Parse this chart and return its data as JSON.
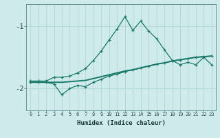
{
  "xlabel": "Humidex (Indice chaleur)",
  "bg_color": "#ceeaea",
  "line_color": "#1a7a6a",
  "grid_color": "#b0d8d0",
  "x": [
    0,
    1,
    2,
    3,
    4,
    5,
    6,
    7,
    8,
    9,
    10,
    11,
    12,
    13,
    14,
    15,
    16,
    17,
    18,
    19,
    20,
    21,
    22,
    23
  ],
  "y_upper": [
    -1.88,
    -1.88,
    -1.88,
    -1.82,
    -1.82,
    -1.8,
    -1.75,
    -1.68,
    -1.55,
    -1.4,
    -1.22,
    -1.05,
    -0.85,
    -1.07,
    -0.92,
    -1.08,
    -1.2,
    -1.38,
    -1.55,
    -1.62,
    -1.58,
    -1.62,
    -1.5,
    -1.62
  ],
  "y_mean": [
    -1.9,
    -1.9,
    -1.9,
    -1.9,
    -1.9,
    -1.89,
    -1.88,
    -1.87,
    -1.84,
    -1.81,
    -1.78,
    -1.75,
    -1.72,
    -1.7,
    -1.67,
    -1.64,
    -1.61,
    -1.59,
    -1.56,
    -1.54,
    -1.52,
    -1.5,
    -1.49,
    -1.48
  ],
  "y_lower": [
    -1.9,
    -1.9,
    -1.9,
    -1.93,
    -2.1,
    -2.0,
    -1.95,
    -1.97,
    -1.9,
    -1.85,
    -1.8,
    -1.77,
    -1.73,
    -1.7,
    -1.67,
    -1.64,
    -1.61,
    -1.59,
    -1.56,
    -1.54,
    -1.52,
    -1.5,
    -1.49,
    -1.48
  ],
  "yticks": [
    -2,
    -1
  ],
  "ylim": [
    -2.35,
    -0.65
  ],
  "xlim": [
    -0.5,
    23.5
  ]
}
